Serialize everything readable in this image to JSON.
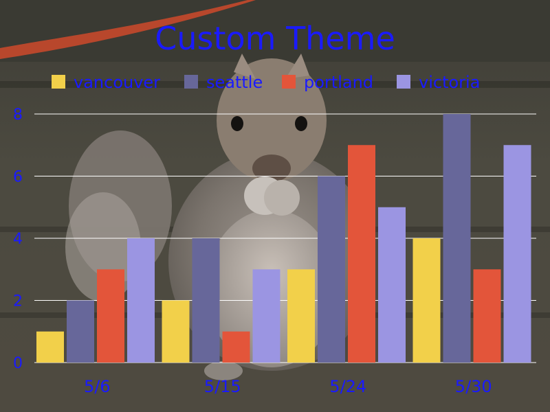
{
  "chart_data": {
    "type": "bar",
    "title": "Custom Theme",
    "categories": [
      "5/6",
      "5/15",
      "5/24",
      "5/30"
    ],
    "series": [
      {
        "name": "vancouver",
        "values": [
          1,
          2,
          3,
          4
        ],
        "color": "#f2d04a"
      },
      {
        "name": "seattle",
        "values": [
          2,
          4,
          6,
          8
        ],
        "color": "#67679a"
      },
      {
        "name": "portland",
        "values": [
          3,
          1,
          7,
          3
        ],
        "color": "#e3553a"
      },
      {
        "name": "victoria",
        "values": [
          4,
          3,
          5,
          7
        ],
        "color": "#9b95e2"
      }
    ],
    "y_ticks": [
      "0",
      "2",
      "4",
      "6",
      "8"
    ],
    "ylim": [
      0,
      8
    ],
    "grid": true,
    "legend_position": "top",
    "text_color": "#1a1aff",
    "background": "photo of a gray squirrel eating on a wooden deck"
  }
}
